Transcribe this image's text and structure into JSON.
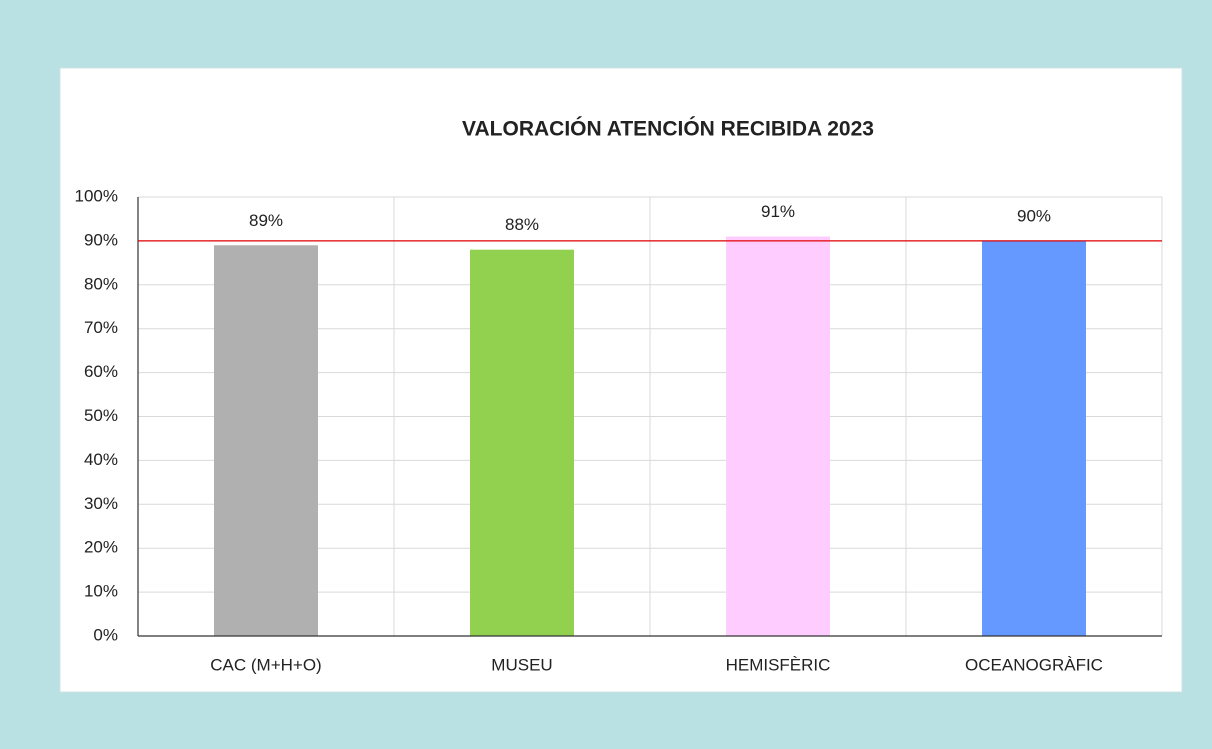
{
  "chart_data": {
    "type": "bar",
    "title": "VALORACIÓN ATENCIÓN RECIBIDA 2023",
    "categories": [
      "CAC (M+H+O)",
      "MUSEU",
      "HEMISFÈRIC",
      "OCEANOGRÀFIC"
    ],
    "values": [
      89,
      88,
      91,
      90
    ],
    "value_labels": [
      "89%",
      "88%",
      "91%",
      "90%"
    ],
    "colors": [
      "#b0b0b0",
      "#92d050",
      "#ffccff",
      "#6699ff"
    ],
    "ylim": [
      0,
      100
    ],
    "yticks": [
      {
        "value": 0,
        "label": "0%"
      },
      {
        "value": 10,
        "label": "10%"
      },
      {
        "value": 20,
        "label": "20%"
      },
      {
        "value": 30,
        "label": "30%"
      },
      {
        "value": 40,
        "label": "40%"
      },
      {
        "value": 50,
        "label": "50%"
      },
      {
        "value": 60,
        "label": "60%"
      },
      {
        "value": 70,
        "label": "70%"
      },
      {
        "value": 80,
        "label": "80%"
      },
      {
        "value": 90,
        "label": "90%"
      },
      {
        "value": 100,
        "label": "100%"
      }
    ],
    "grid": true,
    "reference_line": {
      "value": 90,
      "color": "#e00000"
    }
  }
}
